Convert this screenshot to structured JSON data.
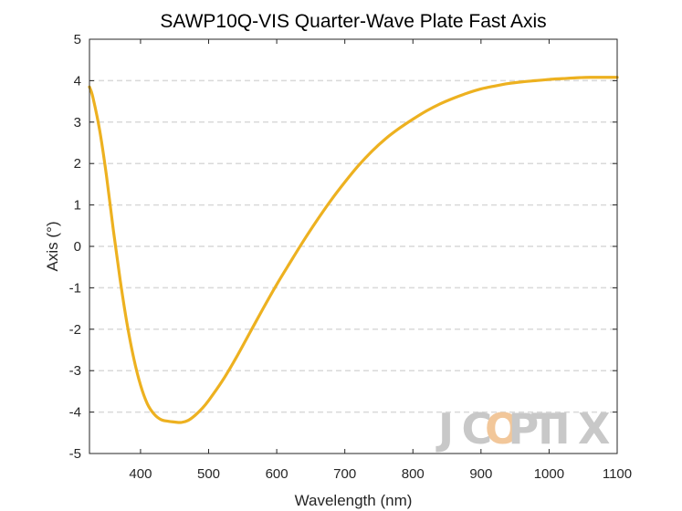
{
  "chart_data": {
    "type": "line",
    "title": "SAWP10Q-VIS Quarter-Wave Plate Fast Axis",
    "xlabel": "Wavelength (nm)",
    "ylabel": "Axis (°)",
    "xlim": [
      325,
      1100
    ],
    "ylim": [
      -5,
      5
    ],
    "xticks": [
      "400",
      "500",
      "600",
      "700",
      "800",
      "900",
      "1000",
      "1100"
    ],
    "yticks": [
      "-5",
      "-4",
      "-3",
      "-2",
      "-1",
      "0",
      "1",
      "2",
      "3",
      "4",
      "5"
    ],
    "grid": "horizontal dashed",
    "series": [
      {
        "color": "#EDB120",
        "x": [
          325,
          330,
          340,
          350,
          360,
          370,
          380,
          390,
          400,
          410,
          420,
          430,
          440,
          450,
          460,
          470,
          480,
          490,
          500,
          520,
          540,
          560,
          580,
          600,
          620,
          640,
          660,
          680,
          700,
          720,
          740,
          760,
          780,
          800,
          820,
          840,
          860,
          880,
          900,
          920,
          940,
          960,
          980,
          1000,
          1020,
          1040,
          1060,
          1080,
          1100
        ],
        "values": [
          3.85,
          3.6,
          2.8,
          1.7,
          0.4,
          -0.8,
          -1.85,
          -2.7,
          -3.35,
          -3.8,
          -4.05,
          -4.18,
          -4.22,
          -4.24,
          -4.25,
          -4.2,
          -4.08,
          -3.92,
          -3.72,
          -3.25,
          -2.7,
          -2.1,
          -1.5,
          -0.92,
          -0.38,
          0.15,
          0.65,
          1.12,
          1.55,
          1.95,
          2.3,
          2.6,
          2.85,
          3.07,
          3.27,
          3.44,
          3.58,
          3.7,
          3.8,
          3.87,
          3.93,
          3.97,
          4.0,
          4.03,
          4.05,
          4.07,
          4.08,
          4.08,
          4.08
        ]
      }
    ]
  },
  "watermark": "JCOPTIX",
  "colors": {
    "series": "#EDB120",
    "grid": "#d9d9d9",
    "axis": "#262626",
    "watermark_main": "#c8c8c8",
    "watermark_accent": "#f2c79a"
  }
}
